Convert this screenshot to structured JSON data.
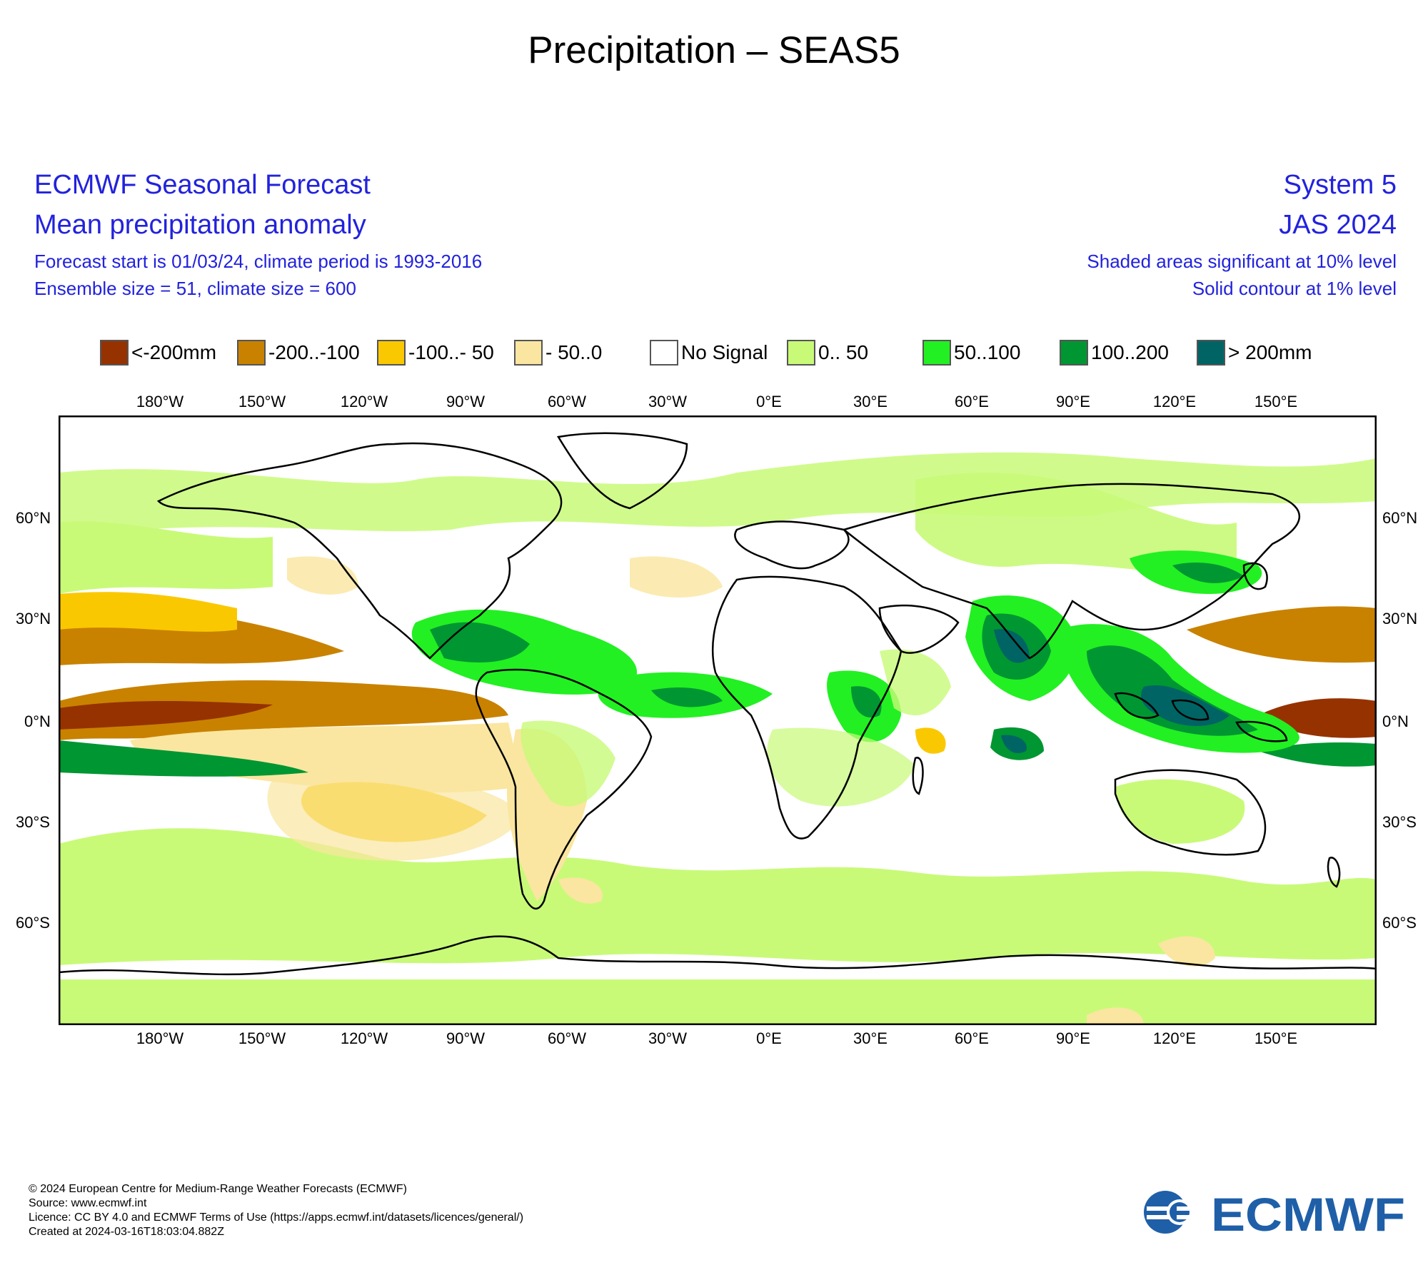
{
  "title": "Precipitation – SEAS5",
  "header": {
    "left": {
      "line1": "ECMWF Seasonal Forecast",
      "line2": "Mean precipitation anomaly",
      "line3": "Forecast start is 01/03/24, climate period is 1993-2016",
      "line4": "Ensemble size = 51, climate size = 600"
    },
    "right": {
      "line1": "System 5",
      "line2": "JAS 2024",
      "line3": "Shaded areas significant at 10% level",
      "line4": "Solid contour at 1% level"
    }
  },
  "legend": [
    {
      "label": "<-200mm",
      "color": "#963200"
    },
    {
      "label": "-200..-100",
      "color": "#c88200"
    },
    {
      "label": "-100..- 50",
      "color": "#fac800"
    },
    {
      "label": "- 50..0",
      "color": "#fae6a0"
    },
    {
      "label": "No Signal",
      "color": "#ffffff"
    },
    {
      "label": "0.. 50",
      "color": "#c8fa78"
    },
    {
      "label": "50..100",
      "color": "#22f022"
    },
    {
      "label": "100..200",
      "color": "#009632"
    },
    {
      "label": "> 200mm",
      "color": "#006464"
    }
  ],
  "map": {
    "lon_labels": [
      "180°W",
      "150°W",
      "120°W",
      "90°W",
      "60°W",
      "30°W",
      "0°E",
      "30°E",
      "60°E",
      "90°E",
      "120°E",
      "150°E"
    ],
    "lat_labels": [
      "60°N",
      "30°N",
      "0°N",
      "30°S",
      "60°S"
    ]
  },
  "footer": {
    "line1": "© 2024 European Centre for Medium-Range Weather Forecasts (ECMWF)",
    "line2": "Source: www.ecmwf.int",
    "line3": "Licence: CC BY 4.0 and ECMWF Terms of Use (https://apps.ecmwf.int/datasets/licences/general/)",
    "line4": "Created at 2024-03-16T18:03:04.882Z"
  },
  "logo_text": "ECMWF"
}
